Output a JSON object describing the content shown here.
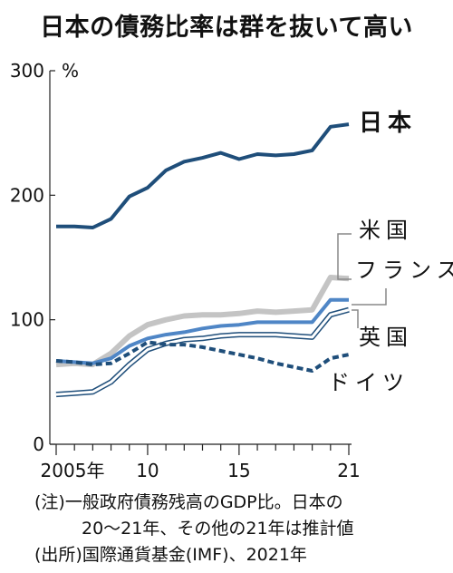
{
  "chart_data": {
    "type": "line",
    "title": "日本の債務比率は群を抜いて高い",
    "ylabel": "%",
    "ylim": [
      0,
      300
    ],
    "yticks": [
      0,
      100,
      200,
      300
    ],
    "xlim": [
      2005,
      2021
    ],
    "xticks": [
      2005,
      2010,
      2015,
      2021
    ],
    "xtick_labels": [
      "2005年",
      "10",
      "15",
      "21"
    ],
    "grid": false,
    "x": [
      2005,
      2006,
      2007,
      2008,
      2009,
      2010,
      2011,
      2012,
      2013,
      2014,
      2015,
      2016,
      2017,
      2018,
      2019,
      2020,
      2021
    ],
    "series": [
      {
        "name": "日本",
        "color": "#1f4e7a",
        "style": "solid",
        "values": [
          175,
          175,
          174,
          181,
          199,
          206,
          220,
          227,
          230,
          234,
          229,
          233,
          232,
          233,
          236,
          255,
          257
        ]
      },
      {
        "name": "米国",
        "color": "#c4c4c4",
        "style": "solid",
        "values": [
          64,
          65,
          64,
          73,
          87,
          96,
          100,
          103,
          104,
          104,
          105,
          107,
          106,
          107,
          108,
          134,
          133
        ]
      },
      {
        "name": "フランス",
        "color": "#4f86c6",
        "style": "solid",
        "values": [
          67,
          66,
          65,
          69,
          79,
          85,
          88,
          90,
          93,
          95,
          96,
          98,
          98,
          98,
          98,
          116,
          116
        ]
      },
      {
        "name": "英国",
        "color": "#1f4e7a",
        "style": "double",
        "values": [
          40,
          41,
          42,
          50,
          64,
          76,
          81,
          84,
          85,
          87,
          88,
          88,
          88,
          87,
          86,
          104,
          108
        ]
      },
      {
        "name": "ドイツ",
        "color": "#1f4e7a",
        "style": "dashed",
        "values": [
          67,
          66,
          64,
          65,
          73,
          82,
          80,
          80,
          78,
          75,
          72,
          69,
          65,
          62,
          59,
          69,
          72
        ]
      }
    ]
  },
  "notes": {
    "line1": "(注)一般政府債務残高のGDP比。日本の",
    "line2": "20〜21年、その他の21年は推計値",
    "line3": "(出所)国際通貨基金(IMF)、2021年"
  }
}
